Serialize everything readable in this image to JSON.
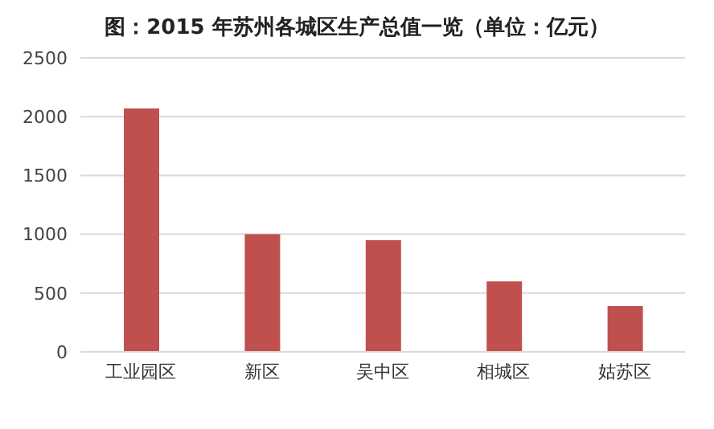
{
  "chart_data": {
    "type": "bar",
    "title": "图：2015 年苏州各城区生产总值一览（单位：亿元）",
    "categories": [
      "工业园区",
      "新区",
      "吴中区",
      "相城区",
      "姑苏区"
    ],
    "values": [
      2070,
      1000,
      950,
      600,
      390
    ],
    "color": "#c0504d",
    "ylim": [
      0,
      2500
    ],
    "yticks": [
      0,
      500,
      1000,
      1500,
      2000,
      2500
    ],
    "grid": "y"
  }
}
